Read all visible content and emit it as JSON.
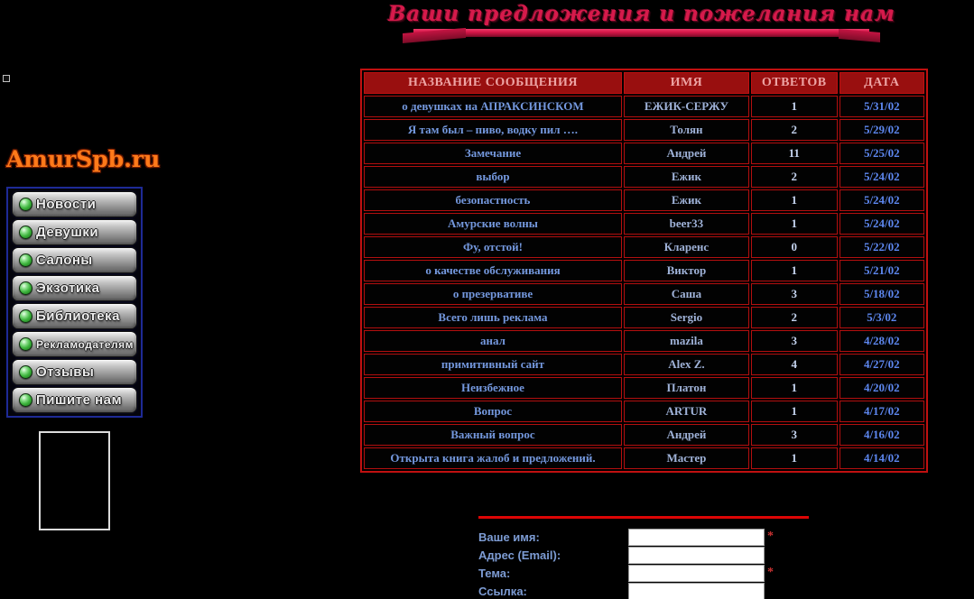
{
  "banner": {
    "title": "Ваши предложения и пожелания нам"
  },
  "logo": {
    "text": "AmurSpb.ru"
  },
  "sidebar": {
    "items": [
      {
        "label": "Новости"
      },
      {
        "label": "Девушки"
      },
      {
        "label": "Салоны"
      },
      {
        "label": "Экзотика"
      },
      {
        "label": "Библиотека"
      },
      {
        "label": "Рекламодателям"
      },
      {
        "label": "Отзывы"
      },
      {
        "label": "Пишите нам"
      }
    ]
  },
  "board": {
    "headers": {
      "title": "НАЗВАНИЕ СООБЩЕНИЯ",
      "name": "ИМЯ",
      "replies": "ОТВЕТОВ",
      "date": "ДАТА"
    },
    "rows": [
      {
        "title": "о девушках на АПРАКСИНСКОМ",
        "name": "ЕЖИК-СЕРЖУ",
        "replies": "1",
        "date": "5/31/02"
      },
      {
        "title": "Я там был – пиво, водку пил ….",
        "name": "Толян",
        "replies": "2",
        "date": "5/29/02"
      },
      {
        "title": "Замечание",
        "name": "Андрей",
        "replies": "11",
        "date": "5/25/02"
      },
      {
        "title": "выбор",
        "name": "Ежик",
        "replies": "2",
        "date": "5/24/02"
      },
      {
        "title": "безопастность",
        "name": "Ежик",
        "replies": "1",
        "date": "5/24/02"
      },
      {
        "title": "Амурские волны",
        "name": "beer33",
        "replies": "1",
        "date": "5/24/02"
      },
      {
        "title": "Фу, отстой!",
        "name": "Кларенс",
        "replies": "0",
        "date": "5/22/02"
      },
      {
        "title": "о качестве обслуживания",
        "name": "Виктор",
        "replies": "1",
        "date": "5/21/02"
      },
      {
        "title": "о презервативе",
        "name": "Саша",
        "replies": "3",
        "date": "5/18/02"
      },
      {
        "title": "Всего лишь реклама",
        "name": "Sergio",
        "replies": "2",
        "date": "5/3/02"
      },
      {
        "title": "анал",
        "name": "mazila",
        "replies": "3",
        "date": "4/28/02"
      },
      {
        "title": "примитивный сайт",
        "name": "Alex Z.",
        "replies": "4",
        "date": "4/27/02"
      },
      {
        "title": "Неизбежное",
        "name": "Платон",
        "replies": "1",
        "date": "4/20/02"
      },
      {
        "title": "Вопрос",
        "name": "ARTUR",
        "replies": "1",
        "date": "4/17/02"
      },
      {
        "title": "Важный вопрос",
        "name": "Андрей",
        "replies": "3",
        "date": "4/16/02"
      },
      {
        "title": "Открыта книга жалоб и предложений.",
        "name": "Мастер",
        "replies": "1",
        "date": "4/14/02"
      }
    ]
  },
  "form": {
    "required_marker": "*",
    "fields": [
      {
        "label": "Ваше имя:",
        "value": "",
        "required": true
      },
      {
        "label": "Адрес (Email):",
        "value": "",
        "required": false
      },
      {
        "label": "Тема:",
        "value": "",
        "required": true
      },
      {
        "label": "Ссылка:",
        "value": "",
        "required": false
      }
    ]
  },
  "colors": {
    "accent_red": "#c01010",
    "table_header_bg": "#990f0f",
    "table_header_text": "#eda4a4",
    "title_link_blue": "#7498de",
    "date_blue": "#5d87ef",
    "banner_crimson": "#d61a4b",
    "logo_orange": "#ff7a1a",
    "led_green": "#3db43d"
  }
}
